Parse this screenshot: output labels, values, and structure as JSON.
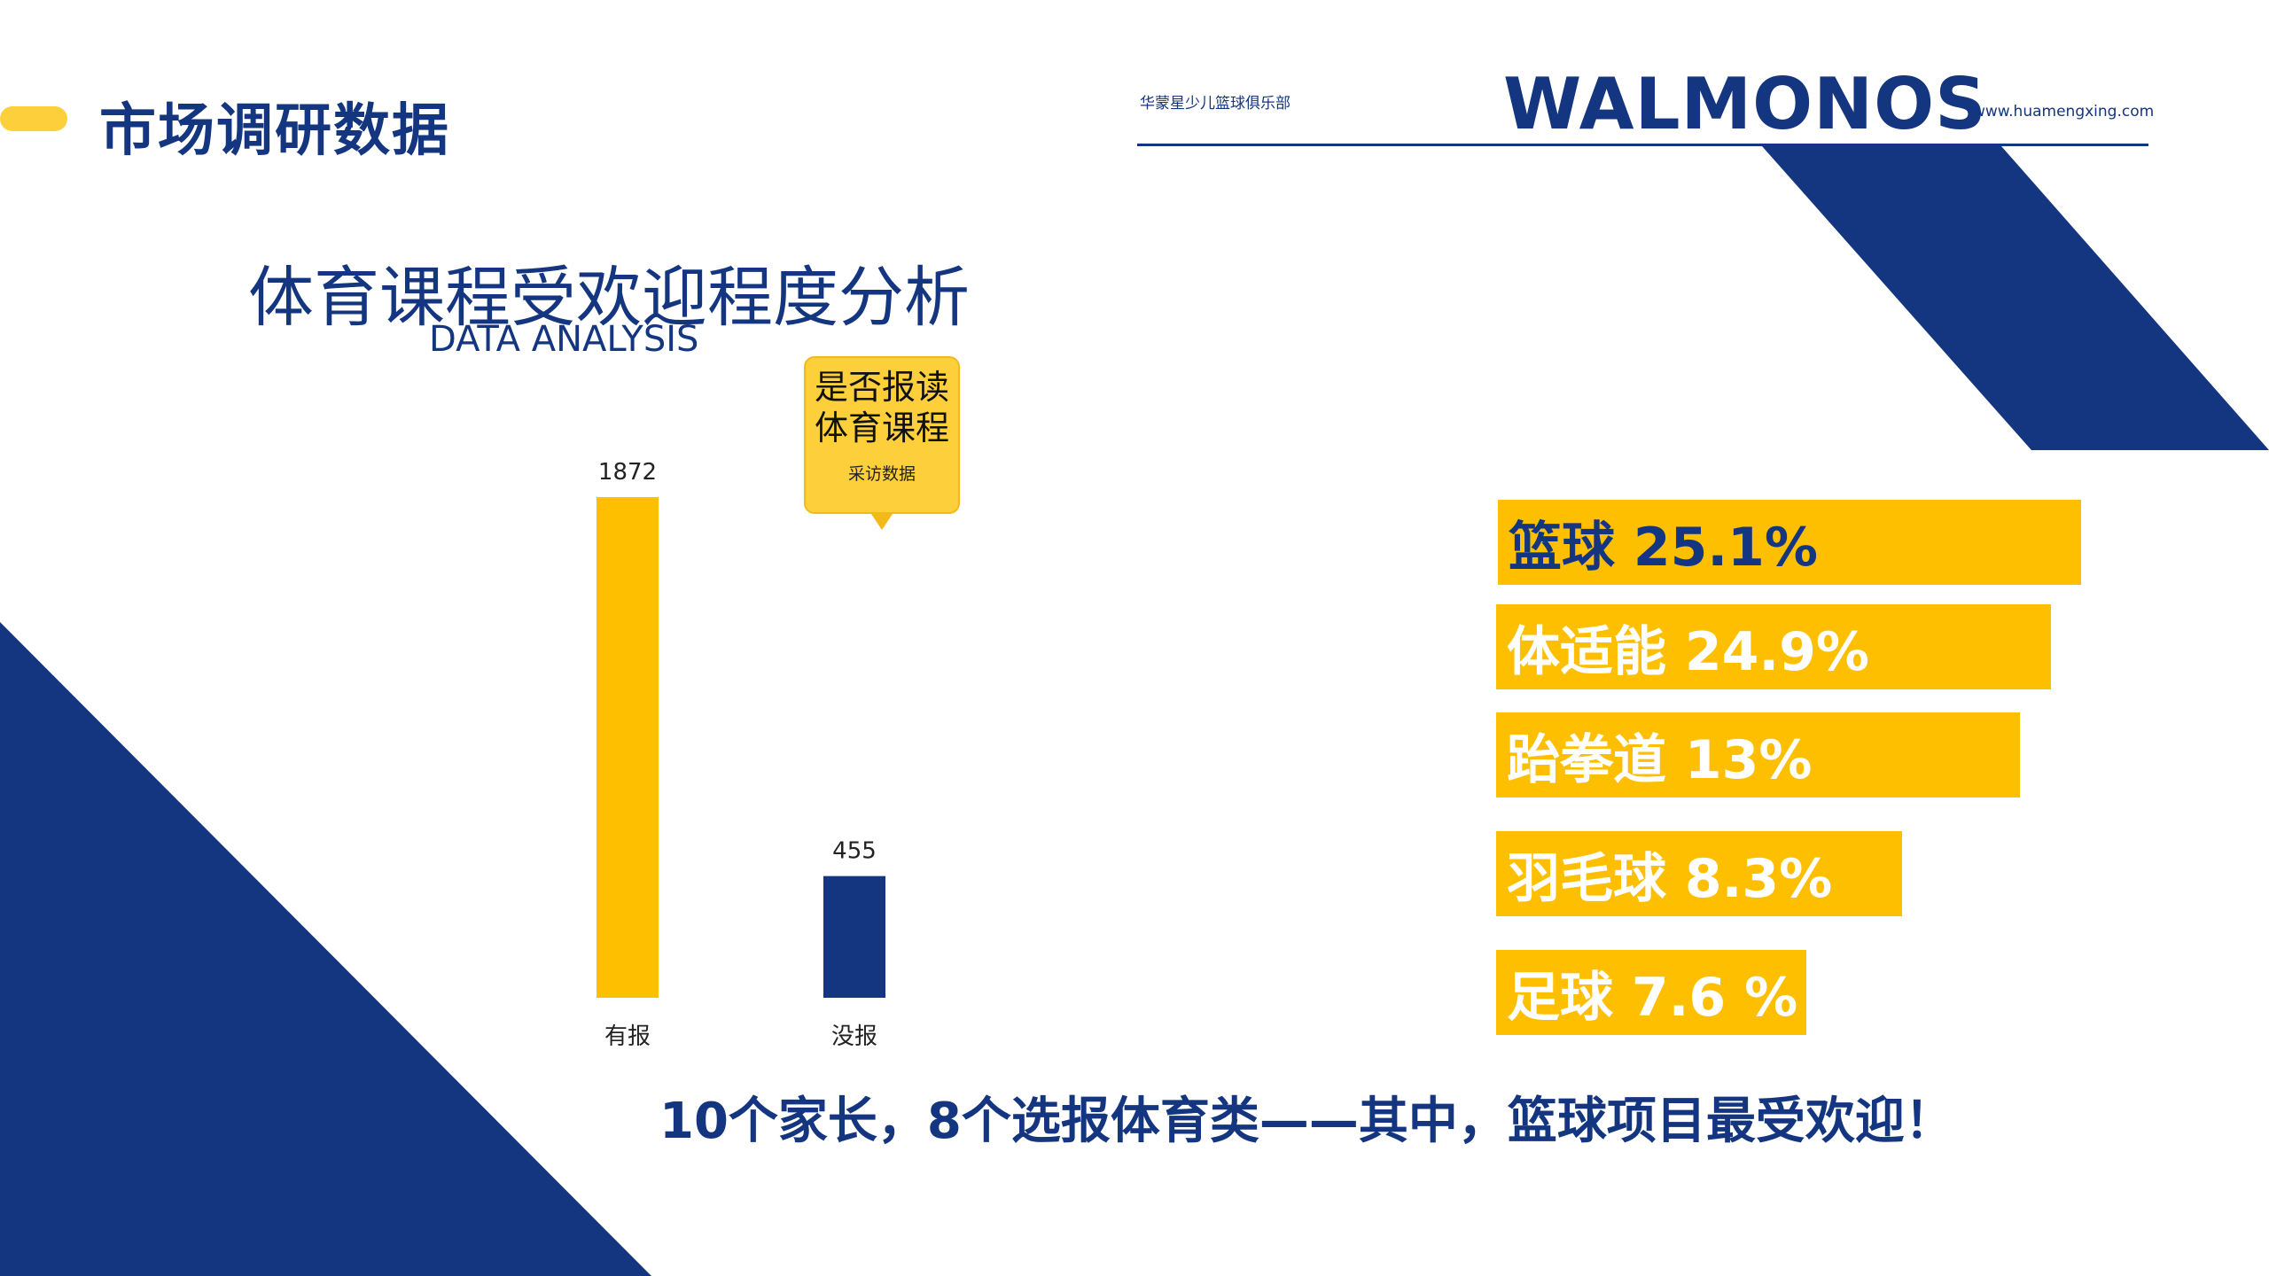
{
  "header": {
    "title": "市场调研数据",
    "club_name": "华蒙星少儿篮球俱乐部",
    "brand": "WALMONOS",
    "website": "www.huamengxing.com"
  },
  "section": {
    "title": "体育课程受欢迎程度分析",
    "subtitle": "DATA ANALYSIS"
  },
  "callout": {
    "line1": "是否报读",
    "line2": "体育课程",
    "note": "采访数据"
  },
  "chart_data": {
    "type": "bar",
    "categories": [
      "有报",
      "没报"
    ],
    "values": [
      1872,
      455
    ],
    "title": "",
    "xlabel": "",
    "ylabel": "",
    "ylim": [
      0,
      1872
    ],
    "colors": [
      "#FDBF00",
      "#14357F"
    ],
    "grid": false
  },
  "ranking": {
    "items": [
      {
        "label": "篮球 25.1%",
        "value": 25.1,
        "text_color": "#14357F"
      },
      {
        "label": "体适能 24.9%",
        "value": 24.9,
        "text_color": "#FFFFFF"
      },
      {
        "label": "跆拳道 13%",
        "value": 13,
        "text_color": "#FFFFFF"
      },
      {
        "label": "羽毛球 8.3%",
        "value": 8.3,
        "text_color": "#FFFFFF"
      },
      {
        "label": "足球 7.6 %",
        "value": 7.6,
        "text_color": "#FFFFFF"
      }
    ]
  },
  "conclusion": "10个家长，8个选报体育类——其中，篮球项目最受欢迎！",
  "colors": {
    "navy": "#14357F",
    "yellow": "#FDBF00",
    "callout_yellow": "#FDD03B"
  }
}
